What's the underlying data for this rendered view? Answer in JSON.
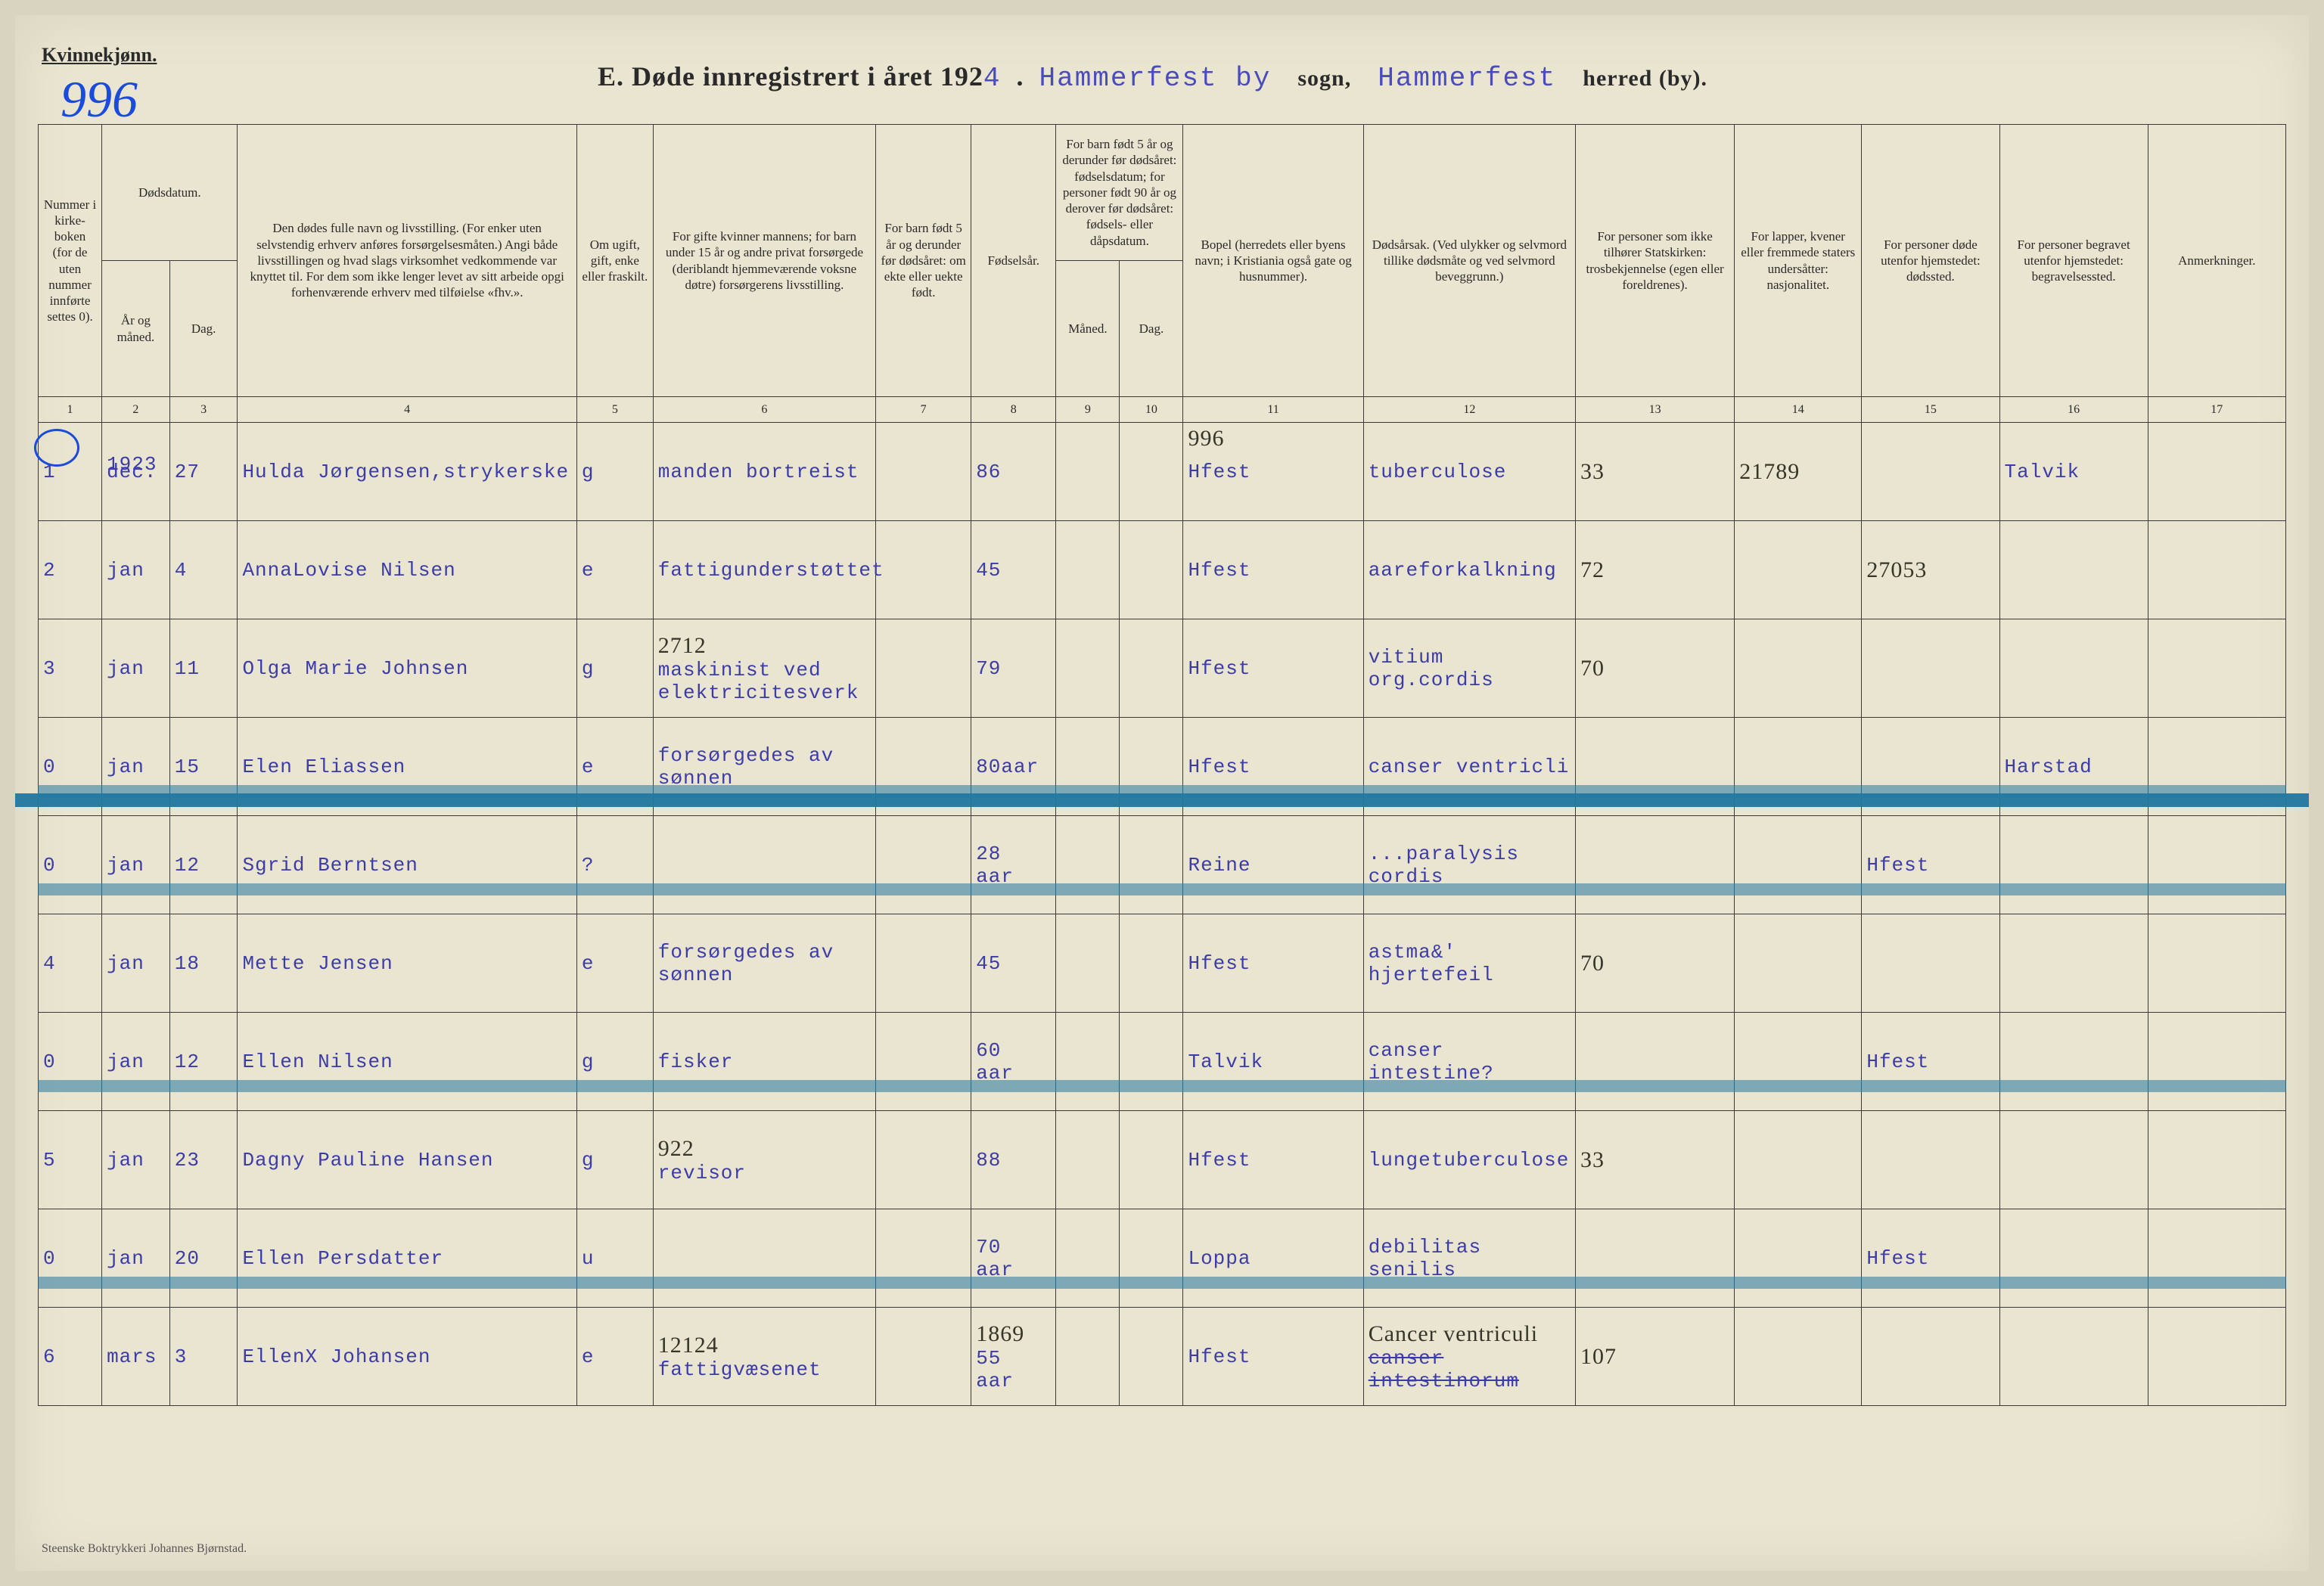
{
  "header": {
    "corner_label": "Kvinnekjønn.",
    "page_number_handwritten": "996",
    "title_prefix": "E.  Døde innregistrert i året 192",
    "year_suffix": "4",
    "parish_typed": "Hammerfest by",
    "sogn_label": "sogn,",
    "district_typed": "Hammerfest",
    "herred_label": "herred (by)."
  },
  "columns": {
    "widths_pct": [
      3.0,
      3.2,
      3.2,
      16.0,
      3.6,
      10.5,
      4.5,
      4.0,
      3.0,
      3.0,
      8.5,
      10.0,
      7.5,
      6.0,
      6.5,
      7.0,
      6.5
    ],
    "labels": [
      "Nummer i kirke­boken (for de uten nummer innførte settes 0).",
      "År og måned.",
      "Dag.",
      "Den dødes fulle navn og livsstilling. (For enker uten selvstendig erhverv anføres forsørgelsesmåten.) Angi både livsstillingen og hvad slags virksomhet vedkommende var knyttet til. For dem som ikke lenger levet av sitt arbeide opgi forhenværende erhverv med tilføielse «fhv.».",
      "Om ugift, gift, enke eller fraskilt.",
      "For gifte kvinner mannens; for barn under 15 år og andre privat forsørgede (deriblandt hjemmeværende voksne døtre) forsørgerens livsstilling.",
      "For barn født 5 år og derunder før døds­året: om ekte eller uekte født.",
      "Fødsels­år.",
      "Måned.",
      "Dag.",
      "Bopel (herredets eller byens navn; i Kristiania også gate og husnummer).",
      "Dødsårsak. (Ved ulykker og selv­mord tillike dødsmåte og ved selvmord beveggrunn.)",
      "For personer som ikke tilhører Statskirken: trosbekjennelse (egen eller foreldrenes).",
      "For lapper, kvener eller fremmede staters undersåtter: nasjonalitet.",
      "For personer døde utenfor hjemstedet: dødssted.",
      "For personer begravet utenfor hjemstedet: begravelsessted.",
      "Anmerkninger."
    ],
    "dodsdatum_group": "Dødsdatum.",
    "barn5_group": "For barn født 5 år og der­under før dødsåret: fødselsdatum; for personer født 90 år og derover før dødsåret: fødsels- eller dåpsdatum.",
    "numbers": [
      "1",
      "2",
      "3",
      "4",
      "5",
      "6",
      "7",
      "8",
      "9",
      "10",
      "11",
      "12",
      "13",
      "14",
      "15",
      "16",
      "17"
    ]
  },
  "year_row_note": "1923",
  "extra_996": "996",
  "rows": [
    {
      "struck": false,
      "c1": "1",
      "c2": "dec.",
      "c3": "27",
      "c4": "Hulda Jørgensen,strykerske",
      "c5": "g",
      "c6": "manden bortreist",
      "c7": "",
      "c8": "86",
      "c9": "",
      "c10": "",
      "c11": "Hfest",
      "c12": "tuberculose",
      "c13": "33",
      "c14": "21789",
      "c15": "",
      "c16": "Talvik",
      "c17": "",
      "c13_hand": true,
      "c14_hand": true
    },
    {
      "struck": false,
      "c1": "2",
      "c2": "jan",
      "c3": "4",
      "c4": "AnnaLovise Nilsen",
      "c5": "e",
      "c6": "fattigunderstøttet",
      "c7": "",
      "c8": "45",
      "c9": "",
      "c10": "",
      "c11": "Hfest",
      "c12": "aareforkalkning",
      "c13": "72",
      "c14": "",
      "c15": "27053",
      "c16": "",
      "c17": "",
      "c13_hand": true,
      "c15_hand": true
    },
    {
      "struck": false,
      "c1": "3",
      "c2": "jan",
      "c3": "11",
      "c4": "Olga Marie Johnsen",
      "c5": "g",
      "c6_line1": "2712",
      "c6": "maskinist ved elektricitesverk",
      "c7": "",
      "c8": "79",
      "c9": "",
      "c10": "",
      "c11": "Hfest",
      "c12": "vitium org.cordis",
      "c13": "70",
      "c14": "",
      "c15": "",
      "c16": "",
      "c17": "",
      "c6_line1_hand": true,
      "c13_hand": true
    },
    {
      "struck": true,
      "c1": "0",
      "c2": "jan",
      "c3": "15",
      "c4": "Elen Eliassen",
      "c5": "e",
      "c6": "forsørgedes av sønnen",
      "c7": "",
      "c8": "80aar",
      "c9": "",
      "c10": "",
      "c11": "Hfest",
      "c12": "canser ventricli",
      "c13": "",
      "c14": "",
      "c15": "",
      "c16": "Harstad",
      "c17": ""
    },
    {
      "struck": true,
      "c1": "0",
      "c2": "jan",
      "c3": "12",
      "c4": "Sgrid Berntsen",
      "c5": "?",
      "c6": "",
      "c7": "",
      "c8": "28 aar",
      "c9": "",
      "c10": "",
      "c11": "Reine",
      "c12": "...paralysis cordis",
      "c13": "",
      "c14": "",
      "c15": "Hfest",
      "c16": "",
      "c17": ""
    },
    {
      "struck": false,
      "c1": "4",
      "c2": "jan",
      "c3": "18",
      "c4": "Mette Jensen",
      "c5": "e",
      "c6": "forsørgedes av sønnen",
      "c7": "",
      "c8": "45",
      "c9": "",
      "c10": "",
      "c11": "Hfest",
      "c12": "astma&' hjertefeil",
      "c13": "70",
      "c14": "",
      "c15": "",
      "c16": "",
      "c17": "",
      "c13_hand": true
    },
    {
      "struck": true,
      "c1": "0",
      "c2": "jan",
      "c3": "12",
      "c4": "Ellen Nilsen",
      "c5": "g",
      "c6": "fisker",
      "c7": "",
      "c8": "60 aar",
      "c9": "",
      "c10": "",
      "c11": "Talvik",
      "c12": "canser intestine?",
      "c13": "",
      "c14": "",
      "c15": "Hfest",
      "c16": "",
      "c17": ""
    },
    {
      "struck": false,
      "c1": "5",
      "c2": "jan",
      "c3": "23",
      "c4": "Dagny Pauline Hansen",
      "c5": "g",
      "c6_line1": "922",
      "c6": "revisor",
      "c7": "",
      "c8": "88",
      "c9": "",
      "c10": "",
      "c11": "Hfest",
      "c12": "lungetuberculose",
      "c13": "33",
      "c14": "",
      "c15": "",
      "c16": "",
      "c17": "",
      "c6_line1_hand": true,
      "c13_hand": true
    },
    {
      "struck": true,
      "c1": "0",
      "c2": "jan",
      "c3": "20",
      "c4": "Ellen Persdatter",
      "c5": "u",
      "c6": "",
      "c7": "",
      "c8": "70 aar",
      "c9": "",
      "c10": "",
      "c11": "Loppa",
      "c12": "debilitas senilis",
      "c13": "",
      "c14": "",
      "c15": "Hfest",
      "c16": "",
      "c17": ""
    },
    {
      "struck": false,
      "c1": "6",
      "c2": "mars",
      "c3": "3",
      "c4": "EllenX Johansen",
      "c5": "e",
      "c6_line1": "12124",
      "c6": "fattigvæsenet",
      "c7": "",
      "c8_line1": "1869",
      "c8": "55 aar",
      "c9": "",
      "c10": "",
      "c11": "Hfest",
      "c12_line1": "Cancer ventriculi",
      "c12": "canser intestinorum",
      "c13": "107",
      "c14": "",
      "c15": "",
      "c16": "",
      "c17": "",
      "c6_line1_hand": true,
      "c8_line1_hand": true,
      "c12_line1_hand": true,
      "c13_hand": true,
      "c12_strike": true
    }
  ],
  "footer": "Steenske Boktrykkeri Johannes Bjørnstad.",
  "colors": {
    "paper": "#eae5d0",
    "ink_print": "#2a2a2a",
    "ink_typed": "#3c3ca8",
    "ink_pencil": "#35352a",
    "ink_bluepen": "#1a4bdc",
    "strike_blue": "rgba(35,120,160,0.55)"
  }
}
